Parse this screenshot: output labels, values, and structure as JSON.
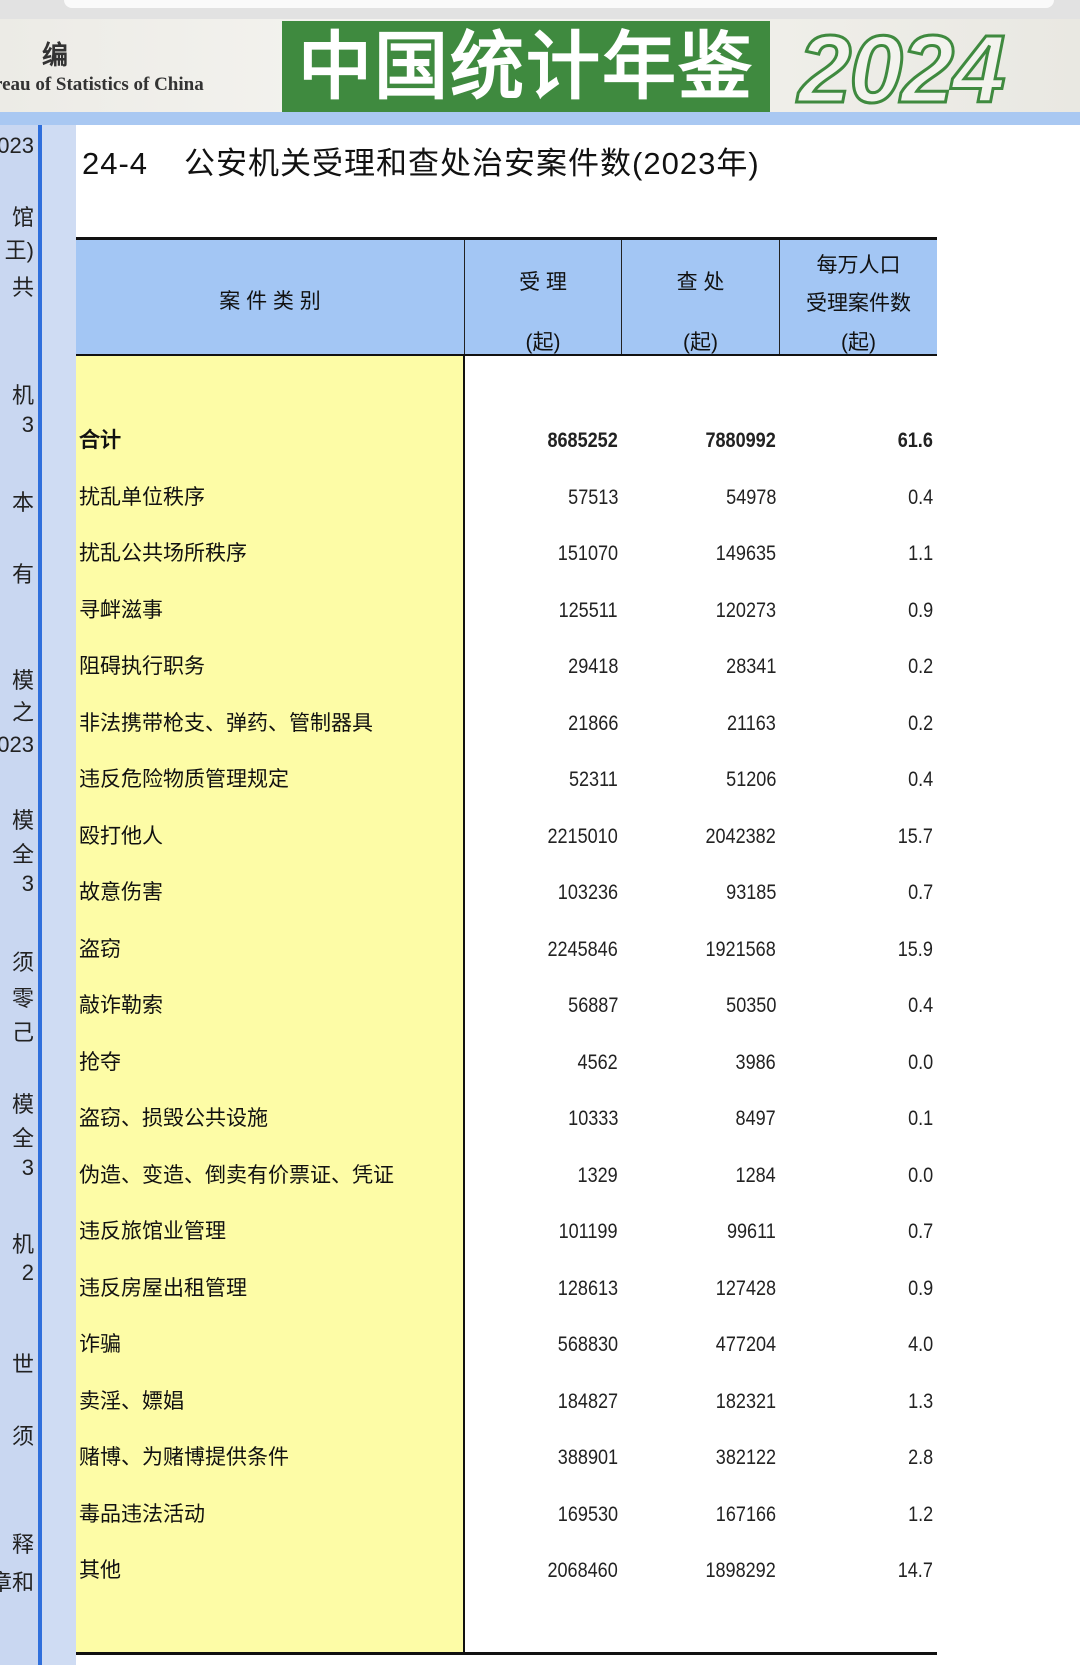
{
  "banner": {
    "bian": "编",
    "english": "reau of Statistics of China",
    "title": "中国统计年鉴",
    "year": "2024"
  },
  "sidebar_fragments": [
    "023",
    "馆",
    "王)",
    "共",
    "机",
    "3",
    "本",
    "有",
    "模",
    "之",
    "023",
    "模",
    "全",
    "3",
    "须",
    "零",
    "己",
    "模",
    "全",
    "3",
    "机",
    "2",
    "世",
    "须",
    "释",
    "章和"
  ],
  "page": {
    "table_number": "24-4",
    "title": "公安机关受理和查处治安案件数(2023年)"
  },
  "table": {
    "columns": [
      {
        "label": "案 件 类 别"
      },
      {
        "label": "受 理",
        "unit": "(起)"
      },
      {
        "label": "查 处",
        "unit": "(起)"
      },
      {
        "label_line1": "每万人口",
        "label_line2": "受理案件数",
        "unit": "(起)"
      }
    ],
    "rows": [
      {
        "category": "合计",
        "accepted": "8685252",
        "handled": "7880992",
        "per_10k": "61.6",
        "total": true
      },
      {
        "category": "扰乱单位秩序",
        "accepted": "57513",
        "handled": "54978",
        "per_10k": "0.4"
      },
      {
        "category": "扰乱公共场所秩序",
        "accepted": "151070",
        "handled": "149635",
        "per_10k": "1.1"
      },
      {
        "category": "寻衅滋事",
        "accepted": "125511",
        "handled": "120273",
        "per_10k": "0.9"
      },
      {
        "category": "阻碍执行职务",
        "accepted": "29418",
        "handled": "28341",
        "per_10k": "0.2"
      },
      {
        "category": "非法携带枪支、弹药、管制器具",
        "accepted": "21866",
        "handled": "21163",
        "per_10k": "0.2"
      },
      {
        "category": "违反危险物质管理规定",
        "accepted": "52311",
        "handled": "51206",
        "per_10k": "0.4"
      },
      {
        "category": "殴打他人",
        "accepted": "2215010",
        "handled": "2042382",
        "per_10k": "15.7"
      },
      {
        "category": "故意伤害",
        "accepted": "103236",
        "handled": "93185",
        "per_10k": "0.7"
      },
      {
        "category": "盗窃",
        "accepted": "2245846",
        "handled": "1921568",
        "per_10k": "15.9"
      },
      {
        "category": "敲诈勒索",
        "accepted": "56887",
        "handled": "50350",
        "per_10k": "0.4"
      },
      {
        "category": "抢夺",
        "accepted": "4562",
        "handled": "3986",
        "per_10k": "0.0"
      },
      {
        "category": "盗窃、损毁公共设施",
        "accepted": "10333",
        "handled": "8497",
        "per_10k": "0.1"
      },
      {
        "category": "伪造、变造、倒卖有价票证、凭证",
        "accepted": "1329",
        "handled": "1284",
        "per_10k": "0.0"
      },
      {
        "category": "违反旅馆业管理",
        "accepted": "101199",
        "handled": "99611",
        "per_10k": "0.7"
      },
      {
        "category": "违反房屋出租管理",
        "accepted": "128613",
        "handled": "127428",
        "per_10k": "0.9"
      },
      {
        "category": "诈骗",
        "accepted": "568830",
        "handled": "477204",
        "per_10k": "4.0"
      },
      {
        "category": "卖淫、嫖娼",
        "accepted": "184827",
        "handled": "182321",
        "per_10k": "1.3"
      },
      {
        "category": "赌博、为赌博提供条件",
        "accepted": "388901",
        "handled": "382122",
        "per_10k": "2.8"
      },
      {
        "category": "毒品违法活动",
        "accepted": "169530",
        "handled": "167166",
        "per_10k": "1.2"
      },
      {
        "category": "其他",
        "accepted": "2068460",
        "handled": "1898292",
        "per_10k": "14.7"
      }
    ]
  },
  "colors": {
    "header_bg": "#a3c6f4",
    "category_col_bg": "#fdfca6",
    "banner_green": "#3f8a3f",
    "sidebar_line": "#2f6fdc"
  }
}
